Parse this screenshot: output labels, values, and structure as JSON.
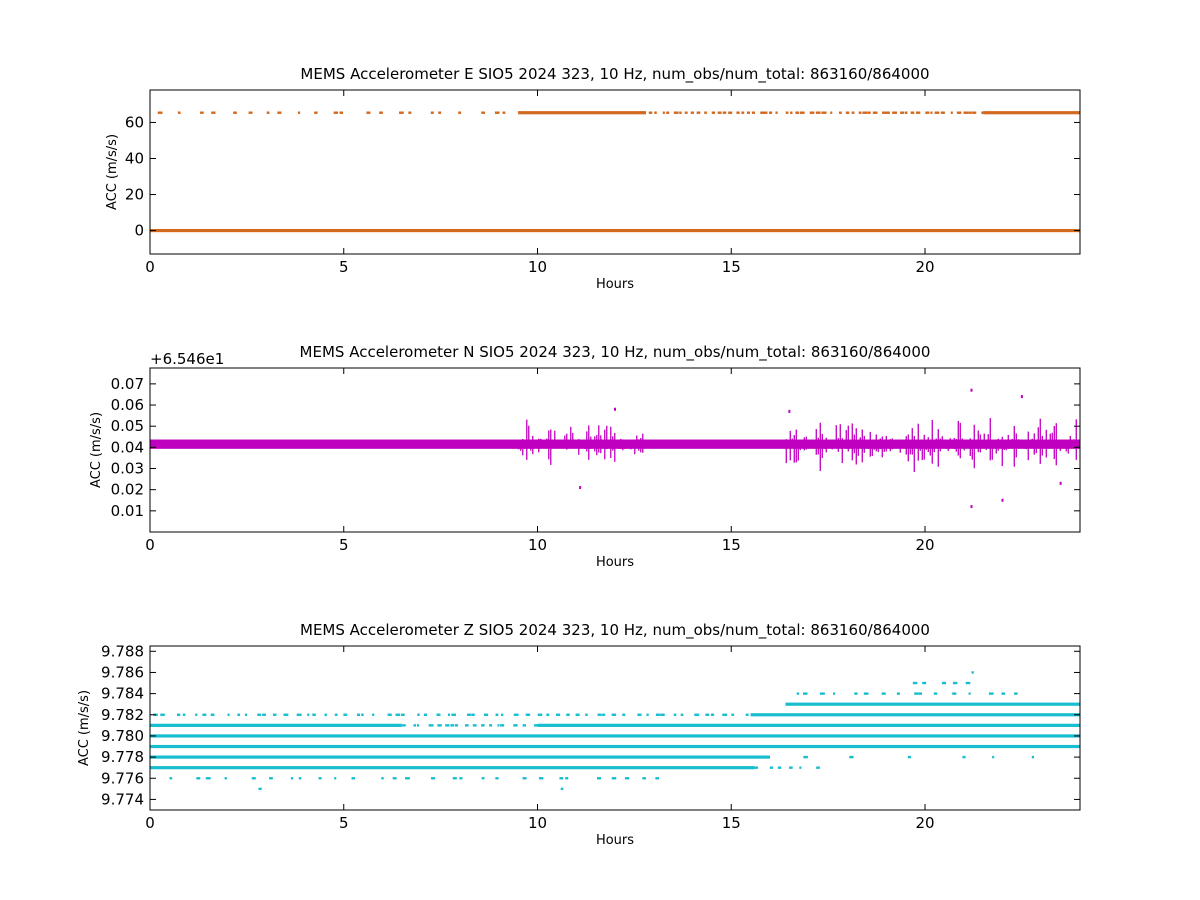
{
  "figure": {
    "background": "#ffffff"
  },
  "chart_data": [
    {
      "type": "scatter",
      "title": "MEMS Accelerometer E SIO5 2024 323, 10 Hz, num_obs/num_total: 863160/864000",
      "xlabel": "Hours",
      "ylabel": "ACC (m/s/s)",
      "xlim": [
        0,
        24
      ],
      "ylim": [
        -13,
        78
      ],
      "x_ticks": [
        0,
        5,
        10,
        15,
        20
      ],
      "x_tick_labels": [
        "0",
        "5",
        "10",
        "15",
        "20"
      ],
      "y_ticks": [
        0,
        20,
        40,
        60
      ],
      "y_tick_labels": [
        "0",
        "20",
        "40",
        "60"
      ],
      "offset_text": "",
      "color": "#d2691e",
      "series": [
        {
          "levels": [
            {
              "y": 0.0,
              "dense": [
                [
                  0,
                  24
                ]
              ],
              "sparse": []
            },
            {
              "y": 65.4,
              "dense": [
                [
                  9.5,
                  12.8
                ],
                [
                  21.5,
                  24
                ]
              ],
              "sparse": [
                [
                  0.2,
                  9.5,
                  22
                ],
                [
                  12.8,
                  21.5,
                  55
                ]
              ]
            }
          ]
        }
      ]
    },
    {
      "type": "scatter",
      "title": "MEMS Accelerometer N SIO5 2024 323, 10 Hz, num_obs/num_total: 863160/864000",
      "xlabel": "Hours",
      "ylabel": "ACC (m/s/s)",
      "xlim": [
        0,
        24
      ],
      "ylim": [
        0.0,
        0.0775
      ],
      "x_ticks": [
        0,
        5,
        10,
        15,
        20
      ],
      "x_tick_labels": [
        "0",
        "5",
        "10",
        "15",
        "20"
      ],
      "y_ticks": [
        0.01,
        0.02,
        0.03,
        0.04,
        0.05,
        0.06,
        0.07
      ],
      "y_tick_labels": [
        "0.01",
        "0.02",
        "0.03",
        "0.04",
        "0.05",
        "0.06",
        "0.07"
      ],
      "offset_text": "+6.546e1",
      "color": "#bf00bf",
      "series": [
        {
          "center": 0.0415,
          "band_half_width": 0.0022,
          "noisy_intervals": [
            [
              9.5,
              12.8,
              0.012
            ],
            [
              16.3,
              24,
              0.014
            ]
          ],
          "extremes": [
            [
              12.0,
              0.058
            ],
            [
              11.1,
              0.021
            ],
            [
              16.5,
              0.057
            ],
            [
              21.2,
              0.067
            ],
            [
              21.2,
              0.012
            ],
            [
              22.0,
              0.015
            ],
            [
              22.5,
              0.064
            ],
            [
              23.5,
              0.023
            ]
          ]
        }
      ]
    },
    {
      "type": "scatter",
      "title": "MEMS Accelerometer Z SIO5 2024 323, 10 Hz, num_obs/num_total: 863160/864000",
      "xlabel": "Hours",
      "ylabel": "ACC (m/s/s)",
      "xlim": [
        0,
        24
      ],
      "ylim": [
        9.773,
        9.7885
      ],
      "x_ticks": [
        0,
        5,
        10,
        15,
        20
      ],
      "x_tick_labels": [
        "0",
        "5",
        "10",
        "15",
        "20"
      ],
      "y_ticks": [
        9.774,
        9.776,
        9.778,
        9.78,
        9.782,
        9.784,
        9.786,
        9.788
      ],
      "y_tick_labels": [
        "9.774",
        "9.776",
        "9.778",
        "9.780",
        "9.782",
        "9.784",
        "9.786",
        "9.788"
      ],
      "offset_text": "",
      "color": "#17becf",
      "series": [
        {
          "levels": [
            {
              "y": 9.775,
              "dense": [],
              "sparse": [
                [
                  2.8,
                  2.8,
                  1
                ],
                [
                  10.6,
                  10.6,
                  1
                ]
              ]
            },
            {
              "y": 9.776,
              "dense": [],
              "sparse": [
                [
                  0.5,
                  13.5,
                  28
                ]
              ]
            },
            {
              "y": 9.777,
              "dense": [
                [
                  0,
                  15.6
                ]
              ],
              "sparse": [
                [
                  15.6,
                  17.3,
                  6
                ]
              ]
            },
            {
              "y": 9.778,
              "dense": [
                [
                  0,
                  16
                ]
              ],
              "sparse": [
                [
                  16,
                  24,
                  6
                ]
              ]
            },
            {
              "y": 9.779,
              "dense": [
                [
                  0,
                  24
                ]
              ],
              "sparse": []
            },
            {
              "y": 9.78,
              "dense": [
                [
                  0,
                  24
                ]
              ],
              "sparse": []
            },
            {
              "y": 9.781,
              "dense": [
                [
                  0,
                  6.5
                ],
                [
                  10,
                  24
                ]
              ],
              "sparse": [
                [
                  6.5,
                  10,
                  18
                ]
              ]
            },
            {
              "y": 9.782,
              "dense": [
                [
                  15.5,
                  24
                ]
              ],
              "sparse": [
                [
                  0,
                  15.5,
                  60
                ]
              ]
            },
            {
              "y": 9.783,
              "dense": [
                [
                  16.4,
                  24
                ]
              ],
              "sparse": []
            },
            {
              "y": 9.784,
              "dense": [],
              "sparse": [
                [
                  16.4,
                  22.5,
                  16
                ]
              ]
            },
            {
              "y": 9.785,
              "dense": [],
              "sparse": [
                [
                  19.5,
                  21.2,
                  5
                ]
              ]
            },
            {
              "y": 9.786,
              "dense": [],
              "sparse": [
                [
                  21.2,
                  21.2,
                  1
                ]
              ]
            }
          ]
        }
      ]
    }
  ]
}
